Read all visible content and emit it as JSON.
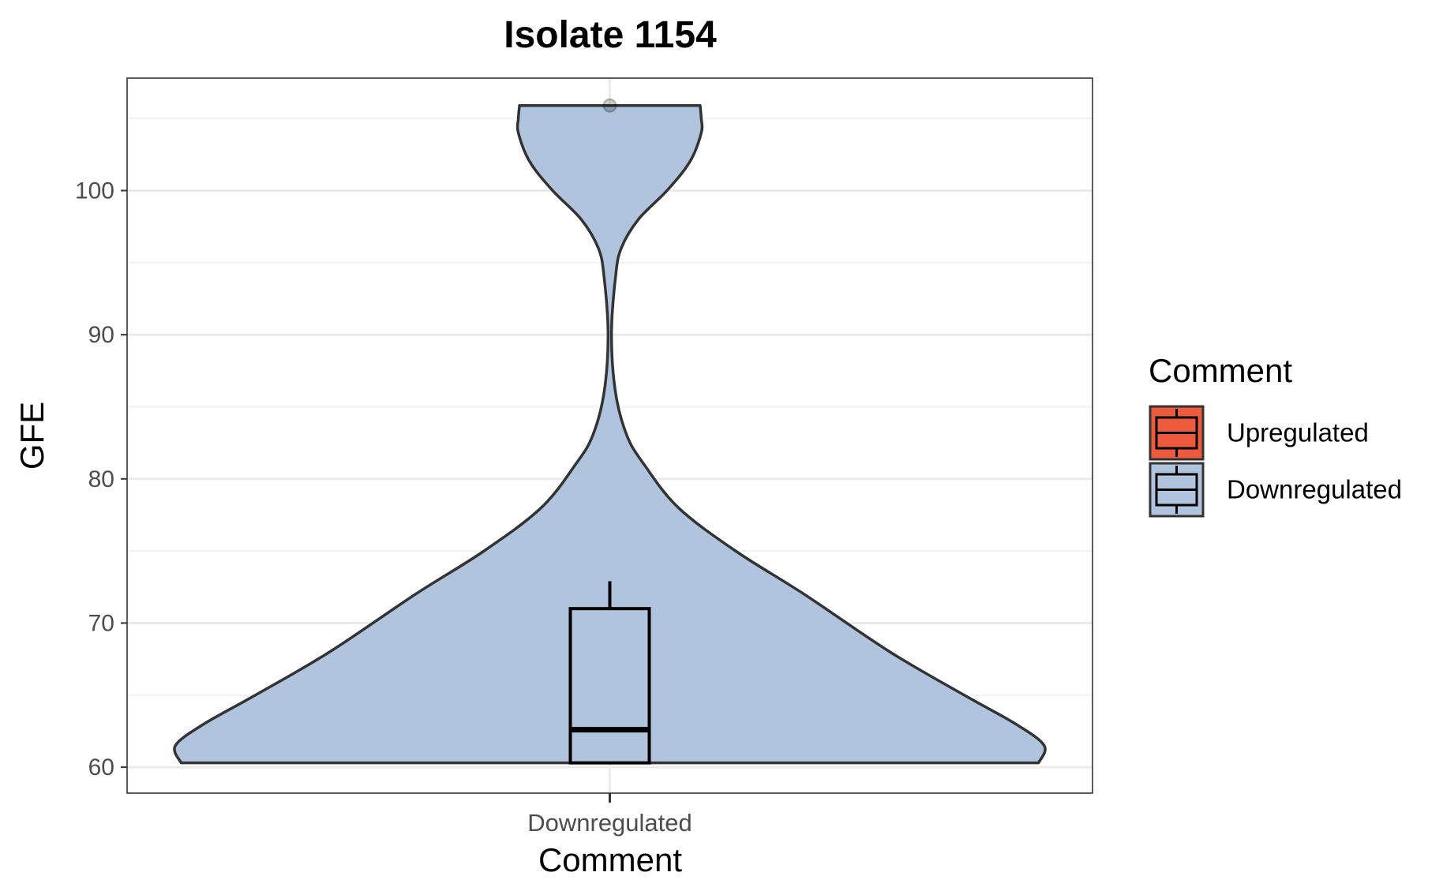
{
  "chart_data": {
    "type": "violin",
    "title": "Isolate 1154",
    "xlabel": "Comment",
    "ylabel": "GFE",
    "categories": [
      "Downregulated"
    ],
    "ylim": [
      58.2,
      107.8
    ],
    "yticks": [
      60,
      70,
      80,
      90,
      100
    ],
    "grid": true,
    "legend": {
      "title": "Comment",
      "placement": "right",
      "entries": [
        {
          "label": "Upregulated",
          "color": "#EE5A3E"
        },
        {
          "label": "Downregulated",
          "color": "#B0C4DE"
        }
      ]
    },
    "series": [
      {
        "category": "Downregulated",
        "color": "#B0C4DE",
        "violin_density": [
          [
            60.3,
            0.75
          ],
          [
            61.5,
            0.76
          ],
          [
            63.0,
            0.71
          ],
          [
            65.0,
            0.62
          ],
          [
            68.0,
            0.49
          ],
          [
            72.0,
            0.34
          ],
          [
            75.0,
            0.22
          ],
          [
            78.0,
            0.12
          ],
          [
            81.0,
            0.06
          ],
          [
            83.0,
            0.03
          ],
          [
            86.0,
            0.01
          ],
          [
            90.0,
            0.003
          ],
          [
            94.0,
            0.01
          ],
          [
            96.0,
            0.02
          ],
          [
            98.0,
            0.05
          ],
          [
            100.0,
            0.1
          ],
          [
            102.0,
            0.14
          ],
          [
            104.0,
            0.16
          ],
          [
            105.0,
            0.16
          ],
          [
            105.9,
            0.158
          ]
        ],
        "box": {
          "min": 60.3,
          "q1": 60.3,
          "median": 62.6,
          "q3": 71.0,
          "max": 72.9
        },
        "outliers": [
          105.9
        ]
      }
    ]
  }
}
